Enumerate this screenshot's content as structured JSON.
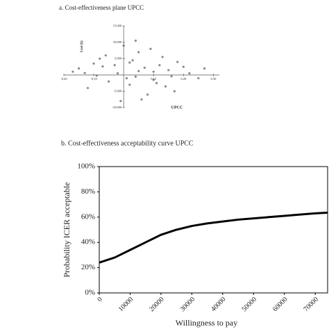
{
  "chart_data": [
    {
      "type": "scatter",
      "title": "a. Cost-effectiveness plane UPCC",
      "x_label": "UPCC",
      "y_label": "Cost (£)",
      "color": "#8a8a8a",
      "x": [
        -0.15,
        -0.08,
        0.02,
        0.1,
        0.18,
        0.25,
        -0.05,
        0.05,
        0.12,
        -0.12,
        0.0,
        0.08,
        0.15,
        -0.02,
        0.04,
        0.2,
        -0.1,
        0.06,
        0.03,
        -0.06,
        0.11,
        0.22,
        -0.17,
        0.01,
        0.09,
        0.14,
        -0.03,
        0.07,
        0.17,
        -0.09,
        0.05,
        0.13,
        -0.01,
        0.27,
        0.02,
        -0.13,
        0.1,
        0.04,
        0.16,
        -0.07
      ],
      "values": [
        2000,
        5000,
        -3000,
        1000,
        4000,
        -1000,
        -2000,
        7000,
        3000,
        -4000,
        9000,
        -6000,
        1500,
        500,
        -500,
        2500,
        3500,
        -7500,
        4500,
        6000,
        -2500,
        500,
        1000,
        -1000,
        8000,
        -3500,
        3000,
        2200,
        -5000,
        -200,
        1200,
        5500,
        -8000,
        2000,
        3800,
        600,
        -1500,
        10500,
        -400,
        2600
      ],
      "xlim": [
        -0.2,
        0.32
      ],
      "xticks": [
        {
          "value": -0.2,
          "label": "-0,20"
        },
        {
          "value": -0.1,
          "label": "-0,10"
        },
        {
          "value": 0.1,
          "label": "0,10"
        },
        {
          "value": 0.2,
          "label": "0,20"
        },
        {
          "value": 0.3,
          "label": "0,30"
        }
      ],
      "ylim": [
        -10000,
        15000
      ],
      "yticks": [
        {
          "value": -10000,
          "label": "-10,000"
        },
        {
          "value": -5000,
          "label": "-5,000"
        },
        {
          "value": 5000,
          "label": "5,000"
        },
        {
          "value": 10000,
          "label": "10,000"
        },
        {
          "value": 15000,
          "label": "15,000"
        }
      ]
    },
    {
      "type": "line",
      "title": "b. Cost-effectiveness acceptability curve UPCC",
      "x_label": "Willingness to pay",
      "y_label": "Probability ICER acceptable",
      "color": "#000000",
      "grid": false,
      "x": [
        0,
        5000,
        10000,
        15000,
        20000,
        25000,
        30000,
        35000,
        40000,
        45000,
        50000,
        55000,
        60000,
        65000,
        70000,
        74000
      ],
      "values": [
        24,
        28,
        34,
        40,
        46,
        50,
        53,
        55,
        56.5,
        58,
        59,
        60,
        61,
        62,
        63,
        63.5
      ],
      "xlim": [
        0,
        74000
      ],
      "xticks": [
        0,
        10000,
        20000,
        30000,
        40000,
        50000,
        60000,
        70000
      ],
      "ylim": [
        0,
        100
      ],
      "yticks": [
        {
          "value": 0,
          "label": "0%"
        },
        {
          "value": 20,
          "label": "20%"
        },
        {
          "value": 40,
          "label": "40%"
        },
        {
          "value": 60,
          "label": "60%"
        },
        {
          "value": 80,
          "label": "80%"
        },
        {
          "value": 100,
          "label": "100%"
        }
      ]
    }
  ]
}
